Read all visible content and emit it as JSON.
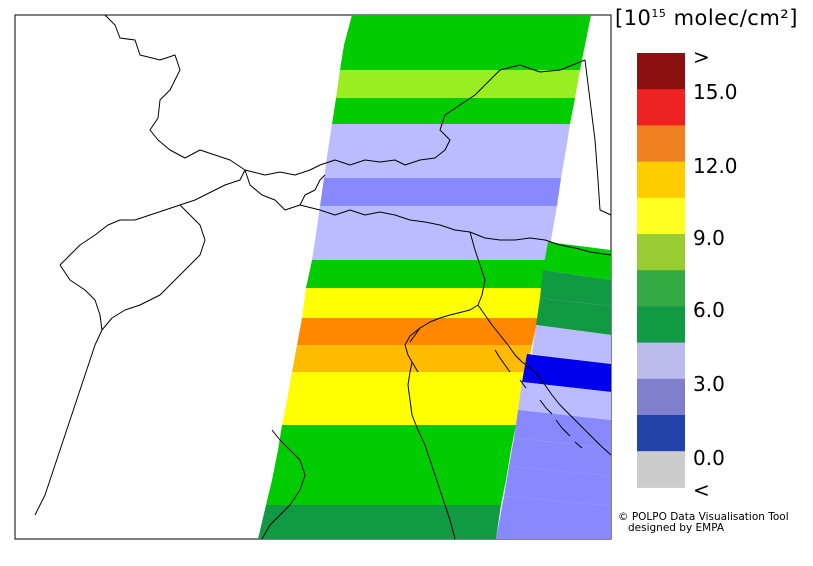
{
  "colorbar": {
    "unit_prefix": "[10",
    "unit_exponent": "15",
    "unit_suffix": " molec/cm²]",
    "over_label": ">",
    "under_label": "<",
    "tick_labels": [
      "15.0",
      "12.0",
      "9.0",
      "6.0",
      "3.0",
      "0.0"
    ],
    "colors": [
      "#8b1010",
      "#ee2222",
      "#f08020",
      "#ffcc00",
      "#ffff22",
      "#99cc33",
      "#33aa44",
      "#119944",
      "#bbbbee",
      "#7f7fcc",
      "#2244aa",
      "#cccccc"
    ]
  },
  "credit": {
    "line1": "© POLPO Data Visualisation Tool",
    "line2": "designed by EMPA"
  }
}
